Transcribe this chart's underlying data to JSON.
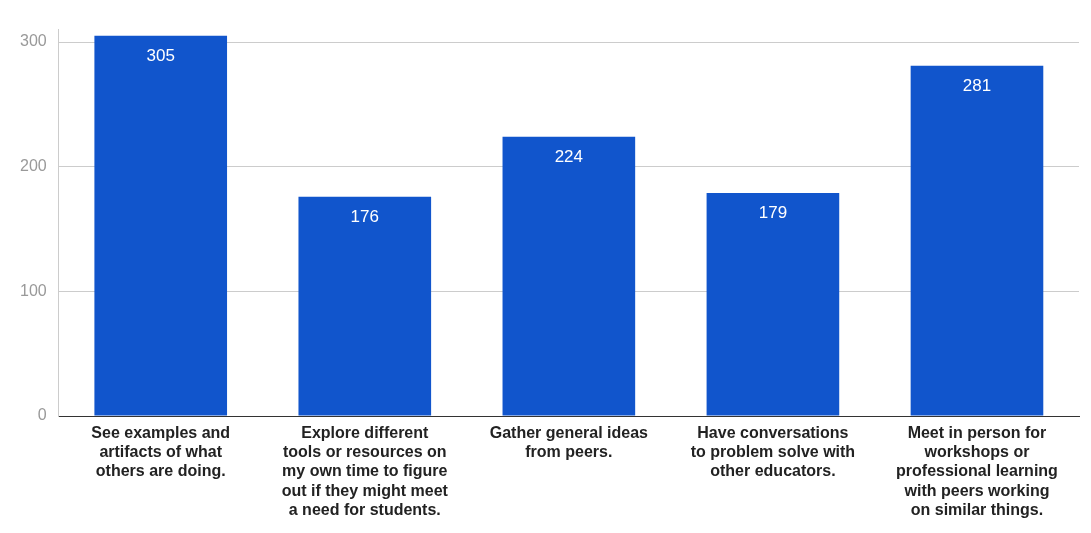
{
  "chart_data": {
    "type": "bar",
    "categories": [
      "See examples and artifacts of what others are doing.",
      "Explore different tools or resources on my own time to figure out if they might meet a need for students.",
      "Gather general ideas from peers.",
      "Have conversations to problem solve with other educators.",
      "Meet in person for workshops or professional learning with peers working on similar things."
    ],
    "values": [
      305,
      176,
      224,
      179,
      281
    ],
    "color": "#1155cc",
    "ylim": [
      0,
      310
    ],
    "yticks": [
      0,
      100,
      200,
      300
    ],
    "grid": "y",
    "data_labels": true,
    "legend": false
  }
}
